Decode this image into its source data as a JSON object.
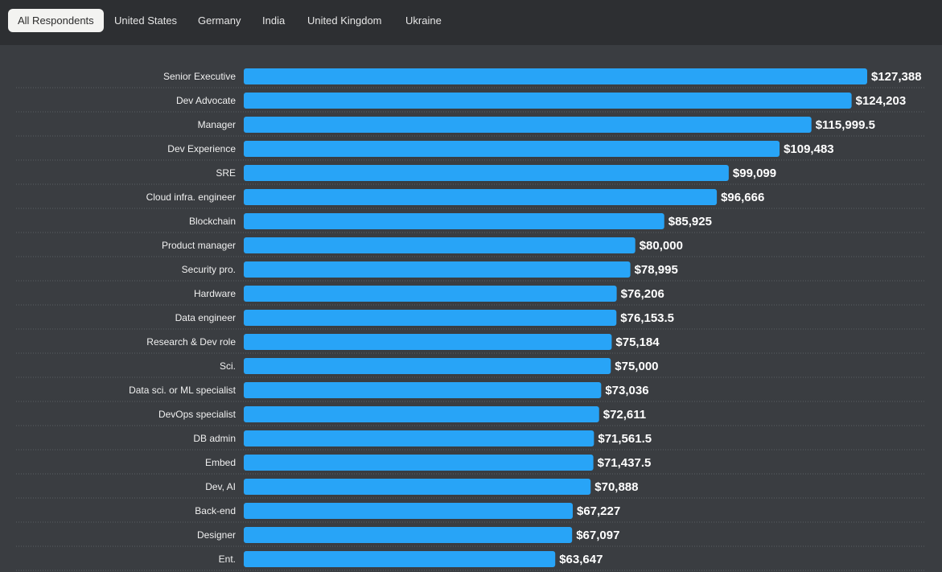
{
  "tabs": [
    {
      "label": "All Respondents",
      "active": true
    },
    {
      "label": "United States",
      "active": false
    },
    {
      "label": "Germany",
      "active": false
    },
    {
      "label": "India",
      "active": false
    },
    {
      "label": "United Kingdom",
      "active": false
    },
    {
      "label": "Ukraine",
      "active": false
    }
  ],
  "colors": {
    "bar": "#28a4f7",
    "background": "#3a3d41",
    "tabbar": "#2d2f32",
    "active_tab": "#f3f3f1"
  },
  "chart_data": {
    "type": "bar",
    "orientation": "horizontal",
    "categories": [
      "Senior Executive",
      "Dev Advocate",
      "Manager",
      "Dev Experience",
      "SRE",
      "Cloud infra. engineer",
      "Blockchain",
      "Product manager",
      "Security pro.",
      "Hardware",
      "Data engineer",
      "Research & Dev role",
      "Sci.",
      "Data sci. or ML specialist",
      "DevOps specialist",
      "DB admin",
      "Embed",
      "Dev, AI",
      "Back-end",
      "Designer",
      "Ent."
    ],
    "values": [
      127388,
      124203,
      115999.5,
      109483,
      99099,
      96666,
      85925,
      80000,
      78995,
      76206,
      76153.5,
      75184,
      75000,
      73036,
      72611,
      71561.5,
      71437.5,
      70888,
      67227,
      67097,
      63647
    ],
    "value_labels": [
      "$127,388",
      "$124,203",
      "$115,999.5",
      "$109,483",
      "$99,099",
      "$96,666",
      "$85,925",
      "$80,000",
      "$78,995",
      "$76,206",
      "$76,153.5",
      "$75,184",
      "$75,000",
      "$73,036",
      "$72,611",
      "$71,561.5",
      "$71,437.5",
      "$70,888",
      "$67,227",
      "$67,097",
      "$63,647"
    ],
    "xlim": [
      0,
      127388
    ],
    "grid": false,
    "legend": "none"
  }
}
